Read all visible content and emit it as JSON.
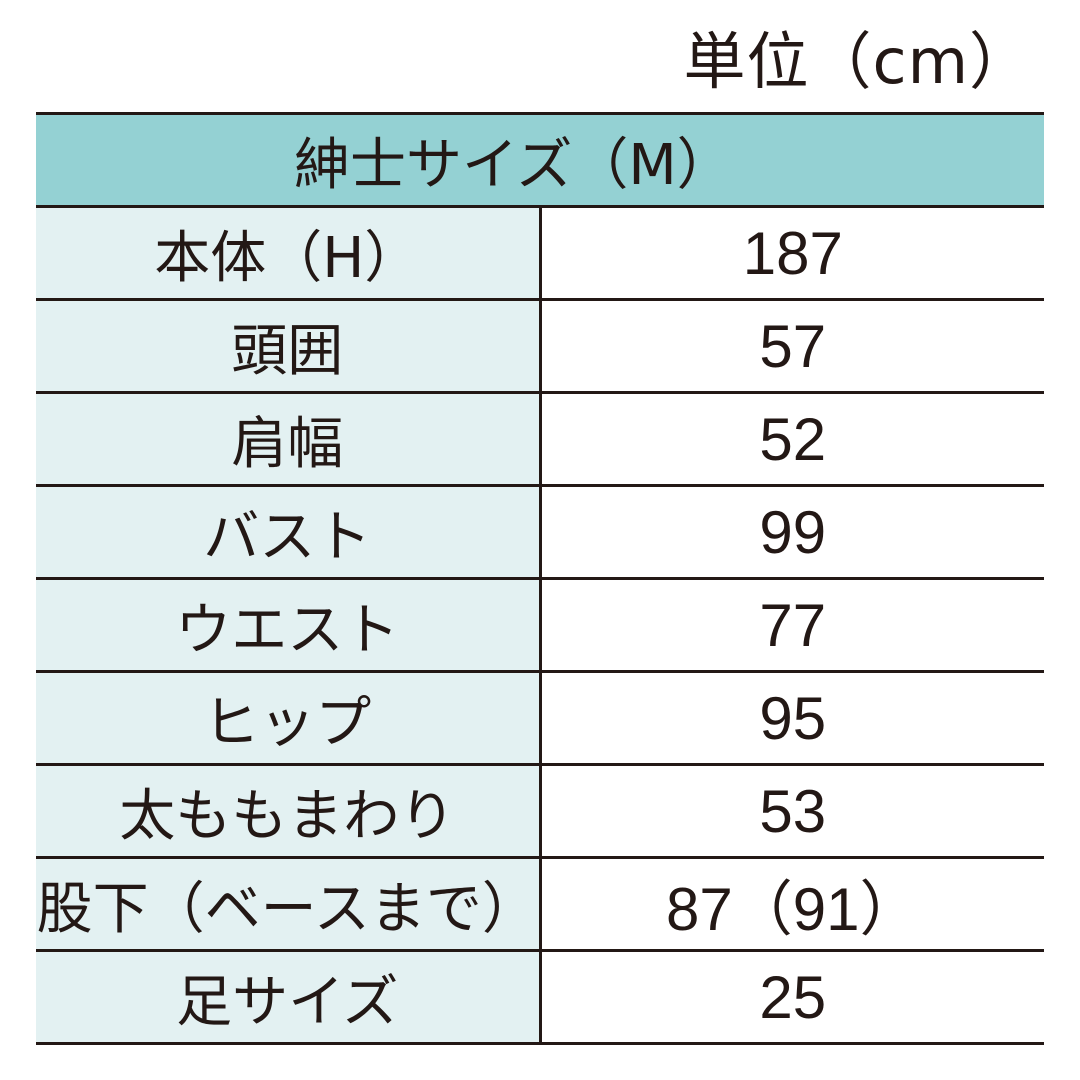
{
  "unit_label": "単位（cm）",
  "table": {
    "header": "紳士サイズ（M）",
    "rows": [
      {
        "label": "本体（H）",
        "value": "187"
      },
      {
        "label": "頭囲",
        "value": "57"
      },
      {
        "label": "肩幅",
        "value": "52"
      },
      {
        "label": "バスト",
        "value": "99"
      },
      {
        "label": "ウエスト",
        "value": "77"
      },
      {
        "label": "ヒップ",
        "value": "95"
      },
      {
        "label": "太ももまわり",
        "value": "53"
      },
      {
        "label": "股下（ベースまで）",
        "value": "87（91）"
      },
      {
        "label": "足サイズ",
        "value": "25"
      }
    ]
  },
  "colors": {
    "header_bg": "#94d1d3",
    "label_bg": "#e3f1f2",
    "text": "#231815"
  }
}
